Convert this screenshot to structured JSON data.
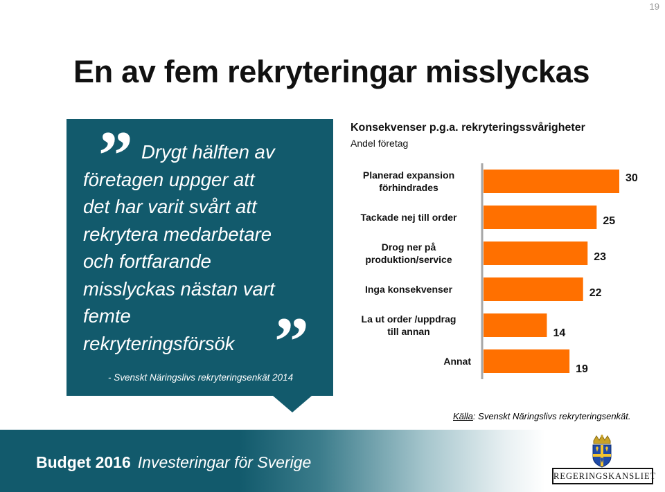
{
  "page_number": "19",
  "title": "En av fem rekryteringar misslyckas",
  "quote": {
    "lines": [
      "Drygt hälften av",
      "företagen uppger att",
      "det har varit svårt att",
      "rekrytera medarbetare",
      "och fortfarande",
      "misslyckas nästan vart",
      "femte",
      "rekryteringsförsök"
    ],
    "open_mark": "”",
    "close_mark": "”",
    "source": "- Svenskt  Näringslivs rekryteringsenkät 2014"
  },
  "chart_data": {
    "type": "bar",
    "orientation": "horizontal",
    "title": "Konsekvenser p.g.a. rekryteringssvårigheter",
    "subtitle": "Andel företag",
    "categories": [
      [
        "Planerad expansion",
        "förhindrades"
      ],
      [
        "Tackade nej till order"
      ],
      [
        "Drog ner på",
        "produktion/service"
      ],
      [
        "Inga konsekvenser"
      ],
      [
        "La ut order /uppdrag",
        "till annan"
      ],
      [
        "Annat"
      ]
    ],
    "values": [
      30,
      25,
      23,
      22,
      14,
      19
    ],
    "xlim": [
      0,
      30
    ],
    "bar_color": "#ff7000",
    "axis_color": "#a6a6a6",
    "grid": false
  },
  "source_note": {
    "label": "Källa",
    "text": ": Svenskt Näringslivs rekryteringsenkät."
  },
  "footer": {
    "budget": "Budget 2016",
    "subtitle": "Investeringar för Sverige",
    "logo_text": "REGERINGSKANSLIET"
  },
  "colors": {
    "brand_teal": "#125a6c",
    "bar_orange": "#ff7000"
  }
}
